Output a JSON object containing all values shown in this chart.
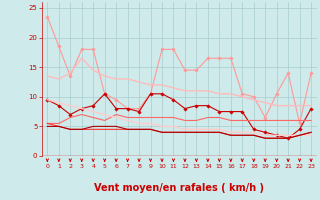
{
  "background_color": "#ceeaea",
  "grid_color": "#aacccc",
  "xlabel": "Vent moyen/en rafales ( km/h )",
  "xlabel_color": "#cc0000",
  "xlabel_fontsize": 7,
  "tick_color": "#cc0000",
  "xlim": [
    -0.5,
    23.5
  ],
  "ylim": [
    0,
    26
  ],
  "yticks": [
    0,
    5,
    10,
    15,
    20,
    25
  ],
  "xticks": [
    0,
    1,
    2,
    3,
    4,
    5,
    6,
    7,
    8,
    9,
    10,
    11,
    12,
    13,
    14,
    15,
    16,
    17,
    18,
    19,
    20,
    21,
    22,
    23
  ],
  "lines": [
    {
      "x": [
        0,
        1,
        2,
        3,
        4,
        5,
        6,
        7,
        8,
        9,
        10,
        11,
        12,
        13,
        14,
        15,
        16,
        17,
        18,
        19,
        20,
        21,
        22,
        23
      ],
      "y": [
        23.5,
        18.5,
        13.5,
        18,
        18,
        10.5,
        9.5,
        8,
        8,
        10.5,
        18,
        18,
        14.5,
        14.5,
        16.5,
        16.5,
        16.5,
        10.5,
        10,
        6.5,
        10.5,
        14,
        5.5,
        14
      ],
      "color": "#ff9999",
      "lw": 0.8,
      "marker": "D",
      "markersize": 1.8
    },
    {
      "x": [
        0,
        1,
        2,
        3,
        4,
        5,
        6,
        7,
        8,
        9,
        10,
        11,
        12,
        13,
        14,
        15,
        16,
        17,
        18,
        19,
        20,
        21,
        22,
        23
      ],
      "y": [
        13.5,
        13,
        14,
        16.5,
        14.5,
        13.5,
        13,
        13,
        12.5,
        12,
        12,
        11.5,
        11,
        11,
        11,
        10.5,
        10.5,
        10,
        9.5,
        9,
        8.5,
        8.5,
        8.5,
        8.5
      ],
      "color": "#ffbbbb",
      "lw": 1.0,
      "marker": null,
      "markersize": 0
    },
    {
      "x": [
        0,
        1,
        2,
        3,
        4,
        5,
        6,
        7,
        8,
        9,
        10,
        11,
        12,
        13,
        14,
        15,
        16,
        17,
        18,
        19,
        20,
        21,
        22,
        23
      ],
      "y": [
        9.5,
        8.5,
        7,
        8,
        8.5,
        10.5,
        8,
        8,
        7.5,
        10.5,
        10.5,
        9.5,
        8,
        8.5,
        8.5,
        7.5,
        7.5,
        7.5,
        4.5,
        4,
        3.5,
        3,
        4.5,
        8
      ],
      "color": "#cc0000",
      "lw": 0.8,
      "marker": "D",
      "markersize": 1.8
    },
    {
      "x": [
        0,
        1,
        2,
        3,
        4,
        5,
        6,
        7,
        8,
        9,
        10,
        11,
        12,
        13,
        14,
        15,
        16,
        17,
        18,
        19,
        20,
        21,
        22,
        23
      ],
      "y": [
        5.5,
        5.5,
        6.5,
        7,
        6.5,
        6,
        7,
        6.5,
        6.5,
        6.5,
        6.5,
        6.5,
        6,
        6,
        6.5,
        6.5,
        6,
        6,
        6,
        6,
        6,
        6,
        6,
        6
      ],
      "color": "#ff6666",
      "lw": 0.8,
      "marker": null,
      "markersize": 0
    },
    {
      "x": [
        0,
        1,
        2,
        3,
        4,
        5,
        6,
        7,
        8,
        9,
        10,
        11,
        12,
        13,
        14,
        15,
        16,
        17,
        18,
        19,
        20,
        21,
        22,
        23
      ],
      "y": [
        9.5,
        9,
        8.5,
        8,
        7.5,
        7,
        6.5,
        6,
        5.5,
        5.5,
        5.0,
        5.0,
        4.5,
        4.5,
        4.5,
        4.5,
        4.0,
        4.0,
        4.0,
        3.5,
        3.5,
        3.5,
        3.5,
        3.5
      ],
      "color": "#ffcccc",
      "lw": 1.0,
      "marker": null,
      "markersize": 0
    },
    {
      "x": [
        0,
        1,
        2,
        3,
        4,
        5,
        6,
        7,
        8,
        9,
        10,
        11,
        12,
        13,
        14,
        15,
        16,
        17,
        18,
        19,
        20,
        21,
        22,
        23
      ],
      "y": [
        5.5,
        5,
        4.5,
        4.5,
        4.5,
        4.5,
        4.5,
        4.5,
        4.5,
        4.5,
        4.0,
        4.0,
        4.0,
        4.0,
        4.0,
        4.0,
        3.5,
        3.5,
        3.5,
        3.0,
        3.0,
        3.0,
        3.5,
        4.0
      ],
      "color": "#ff3333",
      "lw": 0.8,
      "marker": null,
      "markersize": 0
    },
    {
      "x": [
        0,
        1,
        2,
        3,
        4,
        5,
        6,
        7,
        8,
        9,
        10,
        11,
        12,
        13,
        14,
        15,
        16,
        17,
        18,
        19,
        20,
        21,
        22,
        23
      ],
      "y": [
        5.0,
        5.0,
        4.5,
        4.5,
        5.0,
        5.0,
        5.0,
        4.5,
        4.5,
        4.5,
        4.0,
        4.0,
        4.0,
        4.0,
        4.0,
        4.0,
        3.5,
        3.5,
        3.5,
        3.0,
        3.0,
        3.0,
        3.5,
        4.0
      ],
      "color": "#aa0000",
      "lw": 0.8,
      "marker": null,
      "markersize": 0
    }
  ],
  "arrow_color": "#cc0000",
  "tick_fontsize": 5,
  "hline_color": "#cc0000"
}
